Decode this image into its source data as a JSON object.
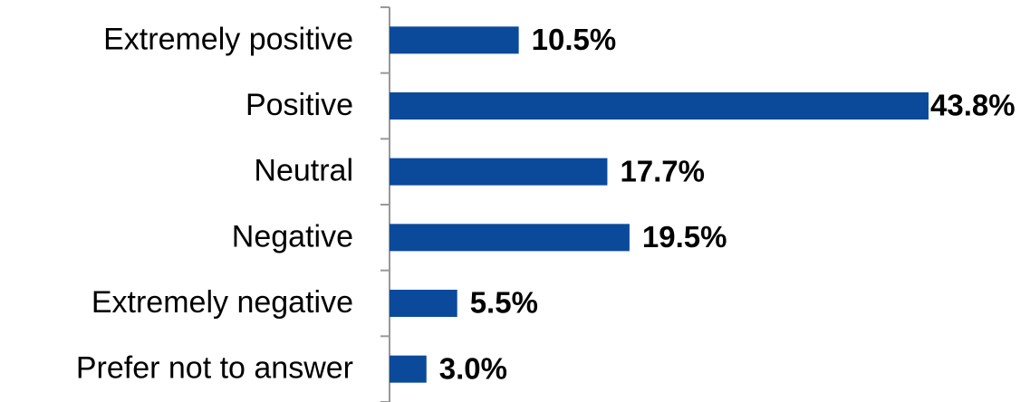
{
  "chart_data": {
    "type": "bar",
    "orientation": "horizontal",
    "categories": [
      "Extremely positive",
      "Positive",
      "Neutral",
      "Negative",
      "Extremely negative",
      "Prefer not to answer"
    ],
    "values": [
      10.5,
      43.8,
      17.7,
      19.5,
      5.5,
      3.0
    ],
    "value_labels": [
      "10.5%",
      "43.8%",
      "17.7%",
      "19.5%",
      "5.5%",
      "3.0%"
    ],
    "color": "#0b4a9b"
  }
}
